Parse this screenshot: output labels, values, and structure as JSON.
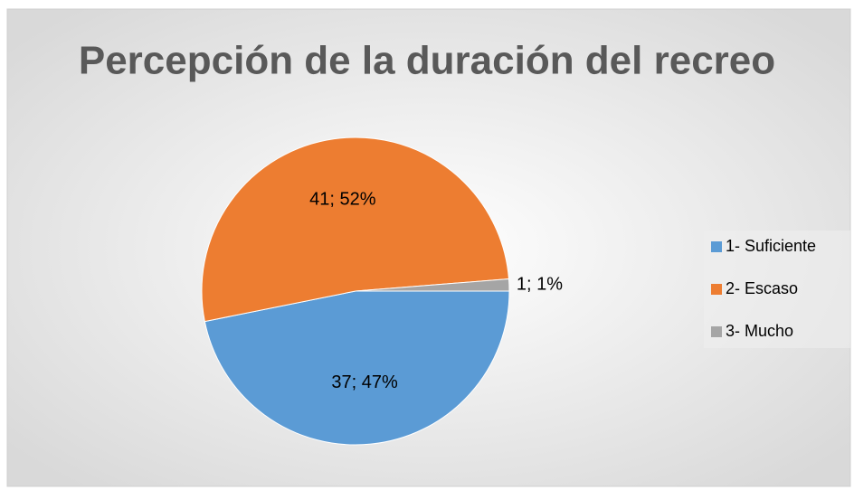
{
  "chart_data": {
    "type": "pie",
    "title": "Percepción de la duración del recreo",
    "categories": [
      "1- Suficiente",
      "2- Escaso",
      "3- Mucho"
    ],
    "values": [
      37,
      41,
      1
    ],
    "value_labels": [
      "37; 47%",
      "41; 52%",
      "1; 1%"
    ],
    "colors": [
      "#5b9bd5",
      "#ed7d31",
      "#a5a5a5"
    ],
    "legend": "right"
  }
}
